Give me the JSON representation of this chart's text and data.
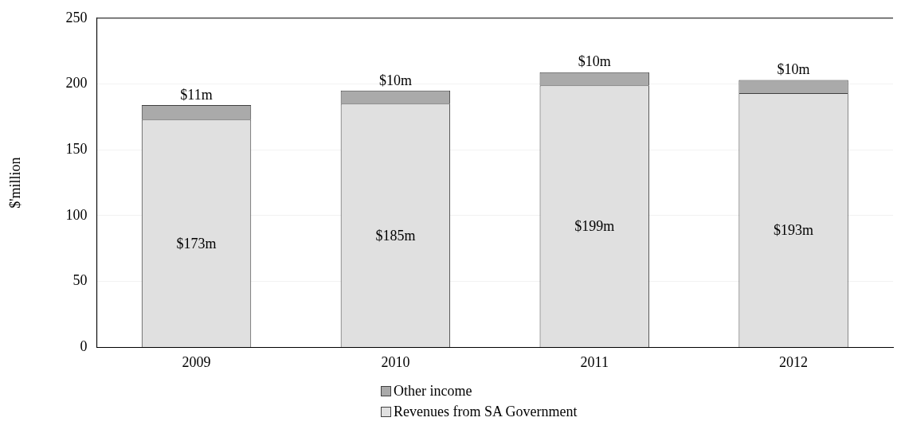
{
  "chart_data": {
    "type": "bar",
    "stacked": true,
    "ylabel": "$'million",
    "categories": [
      "2009",
      "2010",
      "2011",
      "2012"
    ],
    "series": [
      {
        "name": "Revenues from SA Government",
        "color": "#e0e0e0",
        "values": [
          173,
          185,
          199,
          193
        ],
        "value_labels": [
          "$173m",
          "$185m",
          "$199m",
          "$193m"
        ]
      },
      {
        "name": "Other income",
        "color": "#aaaaaa",
        "values": [
          11,
          10,
          10,
          10
        ],
        "value_labels": [
          "$11m",
          "$10m",
          "$10m",
          "$10m"
        ]
      }
    ],
    "ylim": [
      0,
      250
    ],
    "yticks": [
      0,
      50,
      100,
      150,
      200,
      250
    ],
    "grid": "y",
    "legend": "bottom"
  }
}
